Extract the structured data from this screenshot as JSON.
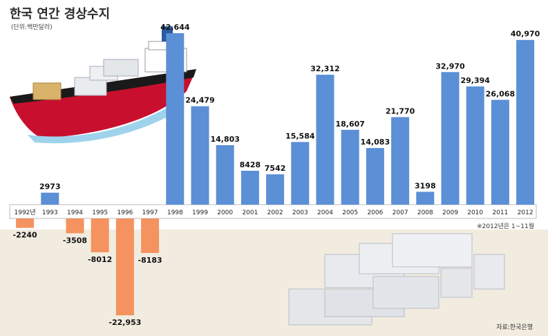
{
  "title": "한국 연간 경상수지",
  "unit": "(단위:백만달러)",
  "note": "※2012년은 1~11월",
  "source": "자료:한국은행",
  "colors": {
    "positive": "#5b8fd6",
    "negative": "#f4935f",
    "background_bottom": "#efeadb",
    "axis_band": "#ffffff"
  },
  "chart_data": {
    "type": "bar",
    "categories": [
      "1992년",
      "1993",
      "1994",
      "1995",
      "1996",
      "1997",
      "1998",
      "1999",
      "2000",
      "2001",
      "2002",
      "2003",
      "2004",
      "2005",
      "2006",
      "2007",
      "2008",
      "2009",
      "2010",
      "2011",
      "2012"
    ],
    "values": [
      -2240,
      2973,
      -3508,
      -8012,
      -22953,
      -8183,
      42644,
      24479,
      14803,
      8428,
      7542,
      15584,
      32312,
      18607,
      14083,
      21770,
      3198,
      32970,
      29394,
      26068,
      40970
    ],
    "labels": [
      "-2240",
      "2973",
      "-3508",
      "-8012",
      "-22,953",
      "-8183",
      "42,644",
      "24,479",
      "14,803",
      "8428",
      "7542",
      "15,584",
      "32,312",
      "18,607",
      "14,083",
      "21,770",
      "3198",
      "32,970",
      "29,394",
      "26,068",
      "40,970"
    ],
    "title": "한국 연간 경상수지",
    "ylabel": "",
    "grid": false
  }
}
